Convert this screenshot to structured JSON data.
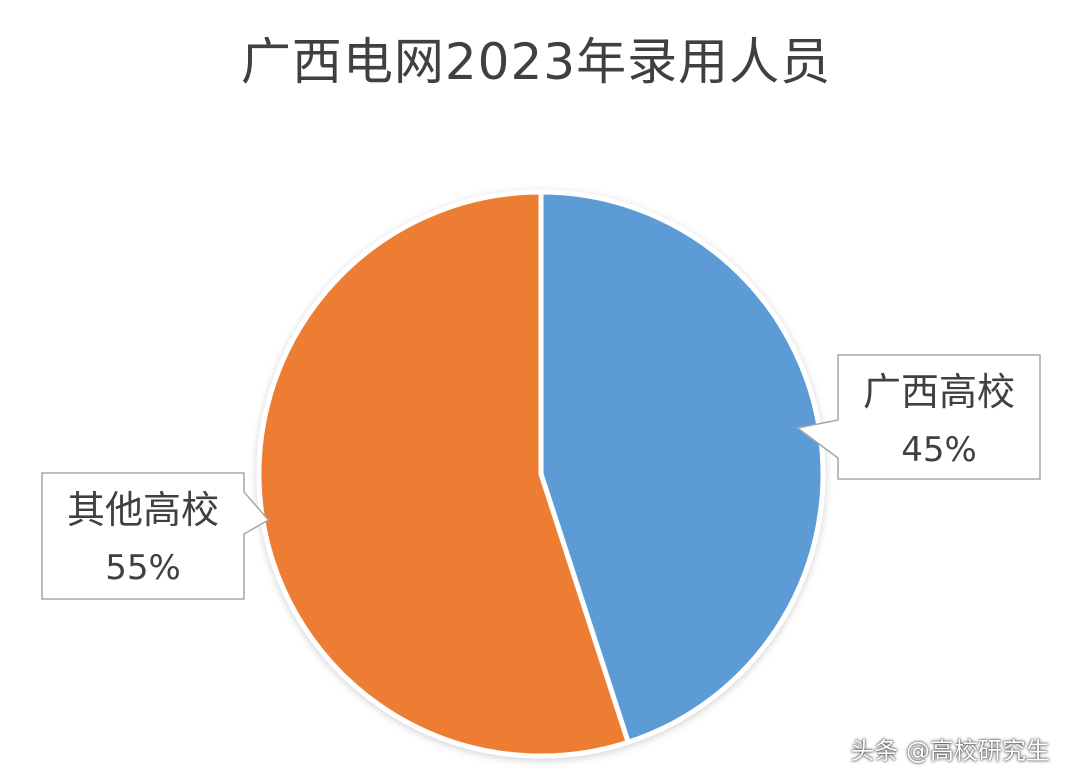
{
  "chart_data": {
    "type": "pie",
    "title": "广西电网2023年录用人员",
    "slices": [
      {
        "name": "广西高校",
        "value": 45,
        "label": "45%",
        "color": "#5b9bd5"
      },
      {
        "name": "其他高校",
        "value": 55,
        "label": "55%",
        "color": "#ed7d31"
      }
    ],
    "start_angle": "12 o'clock",
    "direction": "clockwise",
    "legend": "none"
  },
  "watermark": "头条 @高校研究生"
}
